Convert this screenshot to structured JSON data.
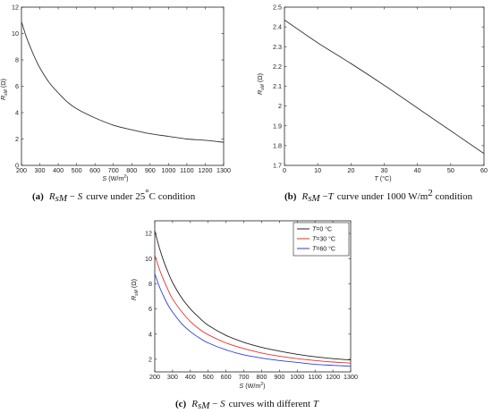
{
  "chart_data": [
    {
      "type": "line",
      "xlabel": "S (W/m²)",
      "ylabel": "R_sM (Ω)",
      "xlim": [
        200,
        1300
      ],
      "ylim": [
        0,
        12
      ],
      "xticks": [
        200,
        300,
        400,
        500,
        600,
        700,
        800,
        900,
        1000,
        1100,
        1200,
        1300
      ],
      "yticks": [
        0,
        2,
        4,
        6,
        8,
        10,
        12
      ],
      "grid": false,
      "series": [
        {
          "color": "#333333",
          "x": [
            200,
            225,
            250,
            275,
            300,
            350,
            400,
            450,
            500,
            600,
            700,
            800,
            900,
            1000,
            1100,
            1200,
            1300
          ],
          "y": [
            10.9,
            9.8,
            8.9,
            8.1,
            7.4,
            6.3,
            5.5,
            4.8,
            4.3,
            3.6,
            3.05,
            2.7,
            2.4,
            2.2,
            2.0,
            1.9,
            1.75
          ]
        }
      ],
      "caption": {
        "label": "(a)",
        "math": "R_sM − S",
        "text1": "curve under 25",
        "deg": "°",
        "unit": "C",
        "text2": "condition"
      }
    },
    {
      "type": "line",
      "xlabel": "T (°C)",
      "ylabel": "R_sM (Ω)",
      "xlim": [
        0,
        60
      ],
      "ylim": [
        1.7,
        2.5
      ],
      "xticks": [
        0,
        10,
        20,
        30,
        40,
        50,
        60
      ],
      "yticks": [
        1.7,
        1.8,
        1.9,
        2.0,
        2.1,
        2.2,
        2.3,
        2.4,
        2.5
      ],
      "ytick_labels": [
        "1.7",
        "1.8",
        "1.9",
        "2",
        "2.1",
        "2.2",
        "2.3",
        "2.4",
        "2.5"
      ],
      "grid": false,
      "series": [
        {
          "color": "#333333",
          "x": [
            0,
            10,
            20,
            30,
            40,
            50,
            60
          ],
          "y": [
            2.435,
            2.32,
            2.215,
            2.105,
            1.99,
            1.875,
            1.76
          ]
        }
      ],
      "caption": {
        "label": "(b)",
        "math": "R_sM −T",
        "text1": "curve under 1000 W/m",
        "sup": "2",
        "text2": "condition"
      }
    },
    {
      "type": "line",
      "xlabel": "S (W/m²)",
      "ylabel": "R_sM (Ω)",
      "xlim": [
        200,
        1300
      ],
      "ylim": [
        1,
        13
      ],
      "xticks": [
        200,
        300,
        400,
        500,
        600,
        700,
        800,
        900,
        1000,
        1100,
        1200,
        1300
      ],
      "yticks": [
        2,
        4,
        6,
        8,
        10,
        12
      ],
      "grid": false,
      "legend_position": "top-right",
      "series": [
        {
          "name": "T=0 °C",
          "color": "#222222",
          "x": [
            200,
            225,
            250,
            275,
            300,
            350,
            400,
            450,
            500,
            600,
            700,
            800,
            900,
            1000,
            1100,
            1200,
            1300
          ],
          "y": [
            12.2,
            10.9,
            9.8,
            8.9,
            8.1,
            6.9,
            6.0,
            5.3,
            4.7,
            3.9,
            3.35,
            2.95,
            2.65,
            2.4,
            2.2,
            2.05,
            1.95
          ]
        },
        {
          "name": "T=30 °C",
          "color": "#e8322a",
          "x": [
            200,
            225,
            250,
            275,
            300,
            350,
            400,
            450,
            500,
            600,
            700,
            800,
            900,
            1000,
            1100,
            1200,
            1300
          ],
          "y": [
            10.3,
            9.2,
            8.3,
            7.5,
            6.8,
            5.8,
            5.0,
            4.4,
            3.95,
            3.3,
            2.85,
            2.5,
            2.25,
            2.05,
            1.9,
            1.78,
            1.7
          ]
        },
        {
          "name": "T=60 °C",
          "color": "#2b3fe0",
          "x": [
            200,
            225,
            250,
            275,
            300,
            350,
            400,
            450,
            500,
            600,
            700,
            800,
            900,
            1000,
            1100,
            1200,
            1300
          ],
          "y": [
            8.8,
            7.8,
            7.0,
            6.3,
            5.75,
            4.85,
            4.2,
            3.7,
            3.3,
            2.75,
            2.35,
            2.1,
            1.9,
            1.75,
            1.6,
            1.52,
            1.45
          ]
        }
      ],
      "caption": {
        "label": "(c)",
        "math": "R_sM − S",
        "text1": "curves with different",
        "var": "T"
      }
    }
  ]
}
